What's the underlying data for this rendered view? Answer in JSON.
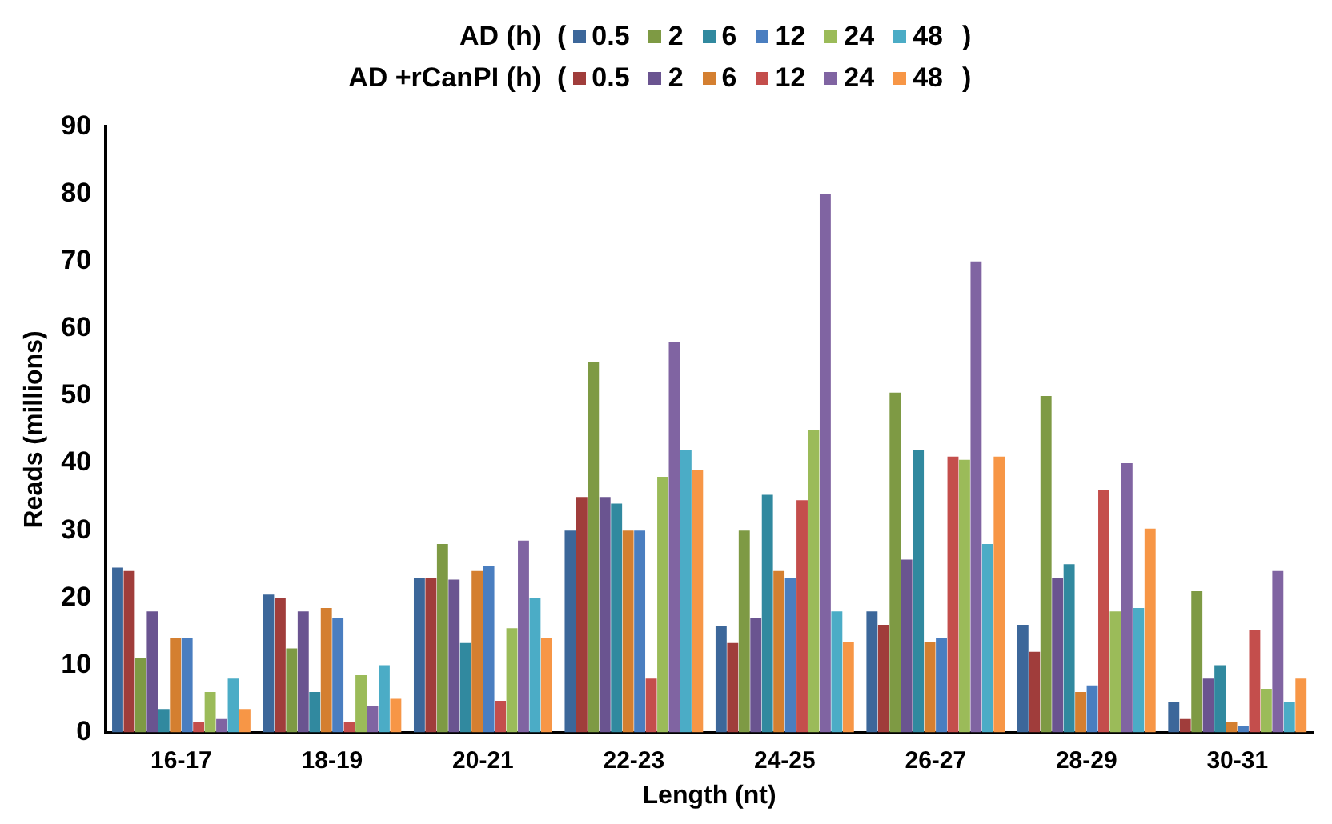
{
  "chart_data": {
    "type": "bar",
    "xlabel": "Length (nt)",
    "ylabel": "Reads (millions)",
    "categories": [
      "16-17",
      "18-19",
      "20-21",
      "22-23",
      "24-25",
      "26-27",
      "28-29",
      "30-31"
    ],
    "ylim": [
      0,
      90
    ],
    "yticks": [
      0,
      10,
      20,
      30,
      40,
      50,
      60,
      70,
      80,
      90
    ],
    "grid": false,
    "legend": "top",
    "annotations": [
      "AD (h)",
      "(",
      ")",
      "AD +rCanPI (h)",
      "(",
      ")"
    ],
    "series": [
      {
        "name": "0.5",
        "color": "#3c679a",
        "values": [
          24.5,
          20.5,
          23,
          30,
          15.8,
          18,
          16,
          4.6
        ]
      },
      {
        "name": "0.5",
        "color": "#a03d3b",
        "values": [
          24,
          20,
          23,
          35,
          13.3,
          16,
          12,
          2
        ]
      },
      {
        "name": "2",
        "color": "#7e9a44",
        "values": [
          11,
          12.5,
          28,
          55,
          30,
          50.5,
          50,
          21
        ]
      },
      {
        "name": "2",
        "color": "#6a5490",
        "values": [
          18,
          18,
          22.7,
          35,
          17,
          25.7,
          23,
          8
        ]
      },
      {
        "name": "6",
        "color": "#31899f",
        "values": [
          3.5,
          6,
          13.3,
          34,
          35.3,
          42,
          25,
          10
        ]
      },
      {
        "name": "6",
        "color": "#d47f30",
        "values": [
          14,
          18.5,
          24,
          30,
          24,
          13.5,
          6,
          1.5
        ]
      },
      {
        "name": "12",
        "color": "#4a7ec0",
        "values": [
          14,
          17,
          24.8,
          30,
          23,
          14,
          7,
          1
        ]
      },
      {
        "name": "12",
        "color": "#c44e4c",
        "values": [
          1.5,
          1.5,
          4.7,
          8,
          34.5,
          41,
          36,
          15.3
        ]
      },
      {
        "name": "24",
        "color": "#9bbb59",
        "values": [
          6,
          8.5,
          15.5,
          38,
          45,
          40.5,
          18,
          6.5
        ]
      },
      {
        "name": "24",
        "color": "#8064a2",
        "values": [
          2,
          4,
          28.5,
          58,
          80,
          70,
          40,
          24
        ]
      },
      {
        "name": "48",
        "color": "#4bacc6",
        "values": [
          8,
          10,
          20,
          42,
          18,
          28,
          18.5,
          4.5
        ]
      },
      {
        "name": "48",
        "color": "#f79646",
        "values": [
          3.5,
          5,
          14,
          39,
          13.5,
          41,
          30.3,
          8
        ]
      }
    ]
  }
}
